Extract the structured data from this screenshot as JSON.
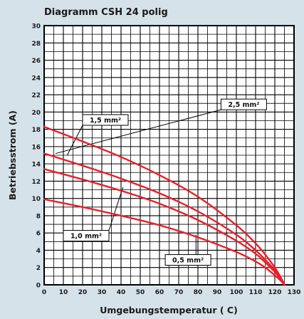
{
  "chart_data": {
    "type": "line",
    "title": "Diagramm CSH 24 polig",
    "xlabel": "Umgebungstemperatur ( C)",
    "ylabel": "Betriebsstrom (A)",
    "xlim": [
      0,
      130
    ],
    "ylim": [
      0,
      30
    ],
    "x_ticks": [
      "0",
      "10",
      "20",
      "30",
      "40",
      "50",
      "60",
      "70",
      "80",
      "90",
      "100",
      "110",
      "120",
      "130"
    ],
    "y_ticks": [
      "0",
      "2",
      "4",
      "6",
      "8",
      "10",
      "12",
      "14",
      "16",
      "18",
      "20",
      "22",
      "24",
      "26",
      "28",
      "30"
    ],
    "grid": true,
    "colors": {
      "curve": "#e8202a",
      "grid": "#000000",
      "background": "#d6e2ea",
      "plot_background": "#ffffff"
    },
    "series": [
      {
        "name": "2,5 mm²",
        "x": [
          0,
          20,
          40,
          60,
          80,
          100,
          110,
          115,
          120,
          123,
          125
        ],
        "y": [
          18.3,
          16.6,
          14.8,
          12.7,
          10.2,
          6.9,
          4.8,
          3.5,
          2.0,
          0.9,
          0
        ]
      },
      {
        "name": "1,5 mm²",
        "x": [
          0,
          20,
          40,
          60,
          80,
          100,
          110,
          115,
          120,
          123,
          125
        ],
        "y": [
          15.2,
          13.8,
          12.3,
          10.6,
          8.5,
          5.8,
          4.0,
          2.9,
          1.7,
          0.8,
          0
        ]
      },
      {
        "name": "1,0 mm²",
        "x": [
          0,
          20,
          40,
          60,
          80,
          100,
          110,
          115,
          120,
          123,
          125
        ],
        "y": [
          13.4,
          12.2,
          10.9,
          9.4,
          7.5,
          5.1,
          3.6,
          2.6,
          1.5,
          0.7,
          0
        ]
      },
      {
        "name": "0,5 mm²",
        "x": [
          0,
          20,
          40,
          60,
          80,
          100,
          110,
          115,
          120,
          123,
          125
        ],
        "y": [
          9.9,
          9.0,
          8.0,
          6.9,
          5.5,
          3.8,
          2.7,
          2.0,
          1.1,
          0.5,
          0
        ]
      }
    ],
    "annotations": [
      {
        "label": "2,5 mm²",
        "box_x": 92,
        "box_y": 21.5,
        "line_to_x": 6,
        "line_to_y": 15.2
      },
      {
        "label": "1,5 mm²",
        "box_x": 20,
        "box_y": 19.7,
        "line_to_x": 12,
        "line_to_y": 15.0
      },
      {
        "label": "1,0 mm²",
        "box_x": 10,
        "box_y": 6.3,
        "line_to_x": 41,
        "line_to_y": 11.3
      },
      {
        "label": "0,5 mm²",
        "box_x": 63,
        "box_y": 3.5,
        "line_to_x": 79,
        "line_to_y": 5.8
      }
    ]
  }
}
